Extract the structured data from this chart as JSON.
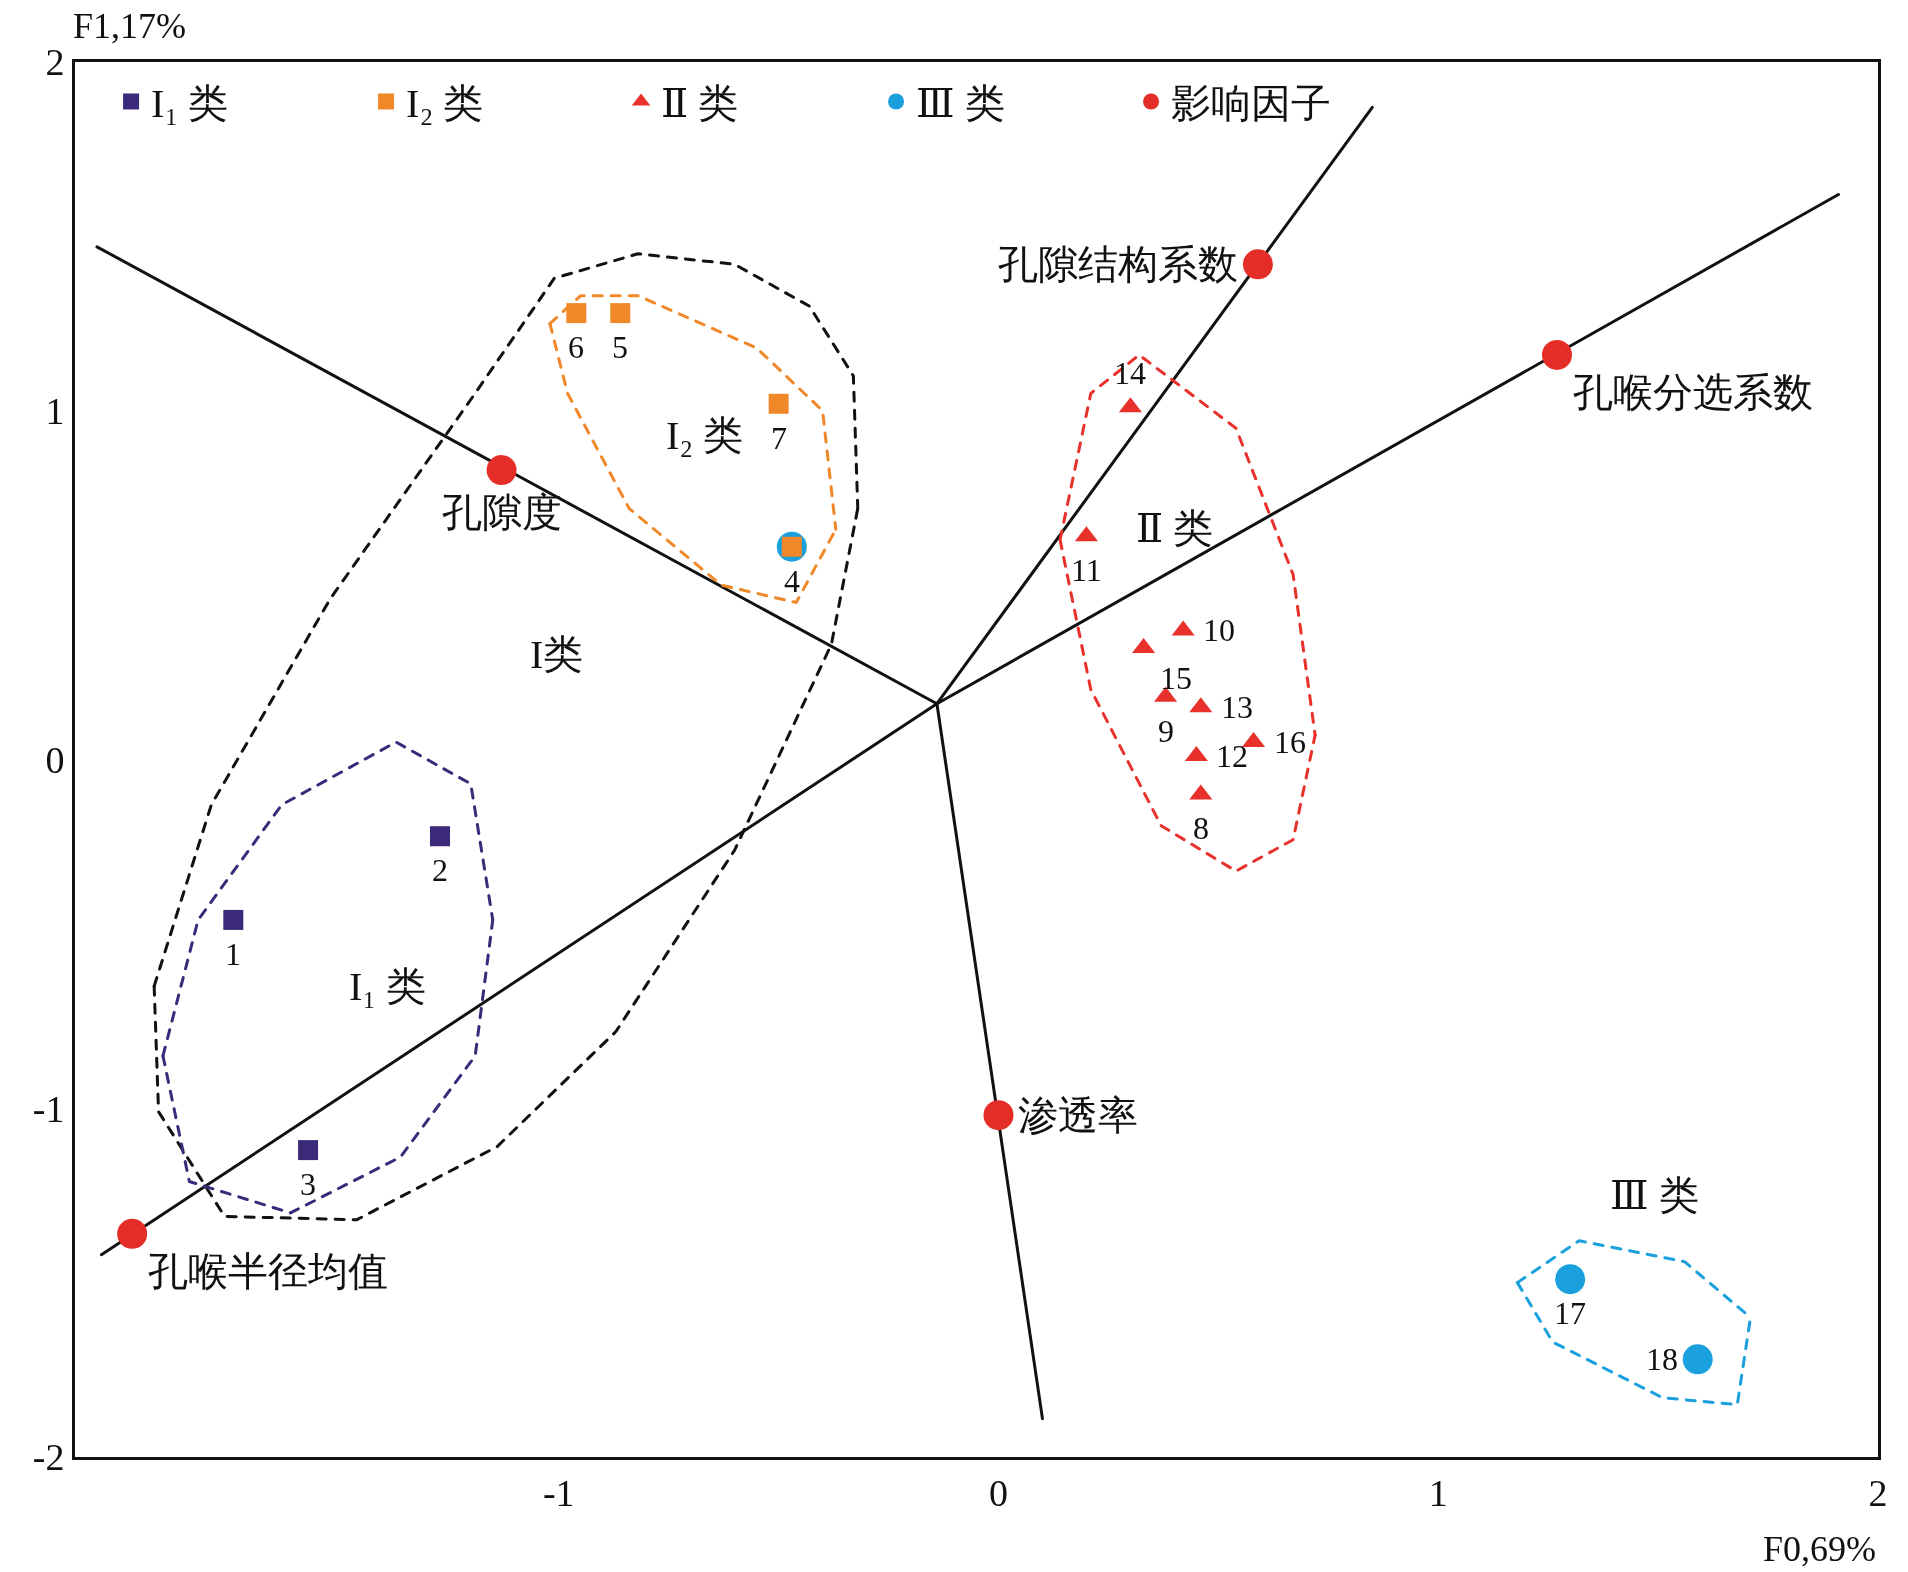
{
  "chart_data": {
    "type": "scatter",
    "xlabel": "F0,69%",
    "ylabel": "F1,17%",
    "xlim": [
      -2.1,
      2
    ],
    "ylim": [
      -2,
      2
    ],
    "xticks": [
      -1,
      0,
      1,
      2
    ],
    "yticks": [
      -2,
      -1,
      0,
      1,
      2
    ],
    "grid": false,
    "legend": "top left",
    "series": [
      {
        "type": "line",
        "line_style": "solid",
        "color": "#111111",
        "x": [
          -0.14,
          -2.05,
          null,
          -0.14,
          0.85,
          null,
          -0.14,
          1.91,
          null,
          -0.14,
          -2.04,
          null,
          -0.14,
          0.1
        ],
        "values": [
          0.16,
          1.47,
          null,
          0.16,
          1.87,
          null,
          0.16,
          1.62,
          null,
          0.16,
          -1.42,
          null,
          0.16,
          -1.89
        ]
      },
      {
        "type": "line",
        "line_style": "dashed",
        "color": "#111111",
        "x": [
          -1.92,
          -1.79,
          -1.52,
          -1.19,
          -1.01,
          -0.82,
          -0.6,
          -0.43,
          -0.33,
          -0.32,
          null,
          -1.92,
          -1.91,
          -1.76,
          -1.46,
          -1.14,
          -0.87,
          -0.6,
          -0.38,
          -0.32
        ],
        "values": [
          -0.65,
          -0.13,
          0.46,
          1.05,
          1.38,
          1.45,
          1.42,
          1.3,
          1.1,
          0.72,
          null,
          -0.65,
          -1.01,
          -1.31,
          -1.32,
          -1.11,
          -0.78,
          -0.26,
          0.33,
          0.72
        ]
      },
      {
        "type": "line",
        "line_style": "dashed",
        "color": "#f0882a",
        "x": [
          -1.02,
          -0.95,
          -0.82,
          -0.55,
          -0.4,
          -0.37,
          null,
          -1.02,
          -0.98,
          -0.84,
          -0.63,
          -0.46,
          -0.37
        ],
        "values": [
          1.25,
          1.33,
          1.33,
          1.18,
          1.0,
          0.66,
          null,
          1.25,
          1.05,
          0.72,
          0.5,
          0.45,
          0.66
        ]
      },
      {
        "type": "line",
        "line_style": "dashed",
        "color": "#3b2a7a",
        "x": [
          -1.9,
          -1.82,
          -1.63,
          -1.37,
          -1.2,
          -1.15,
          null,
          -1.9,
          -1.84,
          -1.61,
          -1.36,
          -1.19,
          -1.15
        ],
        "values": [
          -0.85,
          -0.46,
          -0.13,
          0.05,
          -0.07,
          -0.46,
          null,
          -0.85,
          -1.21,
          -1.3,
          -1.14,
          -0.85,
          -0.46
        ]
      },
      {
        "type": "line",
        "line_style": "dashed",
        "color": "#e8312a",
        "x": [
          0.14,
          0.21,
          0.32,
          0.54,
          0.67,
          0.72,
          null,
          0.14,
          0.21,
          0.37,
          0.54,
          0.67,
          0.72
        ],
        "values": [
          0.63,
          1.05,
          1.16,
          0.95,
          0.53,
          0.07,
          null,
          0.63,
          0.2,
          -0.19,
          -0.32,
          -0.23,
          0.07
        ]
      },
      {
        "type": "line",
        "line_style": "dashed",
        "color": "#1aa0dc",
        "x": [
          1.18,
          1.32,
          1.56,
          1.71,
          null,
          1.18,
          1.26,
          1.51,
          1.68,
          1.71
        ],
        "values": [
          -1.5,
          -1.38,
          -1.44,
          -1.6,
          null,
          -1.5,
          -1.67,
          -1.83,
          -1.85,
          -1.6
        ]
      },
      {
        "name": "I₁ 类",
        "marker": "square",
        "color": "#3b2a7a",
        "x": [
          -1.74,
          -1.27,
          -1.57
        ],
        "values": [
          -0.46,
          -0.22,
          -1.12
        ]
      },
      {
        "name": "I₂ 类",
        "marker": "square",
        "color": "#f0882a",
        "x": [
          -0.47,
          -0.86,
          -0.96,
          -0.5
        ],
        "values": [
          0.61,
          1.28,
          1.28,
          1.02
        ]
      },
      {
        "name": "Ⅱ 类",
        "marker": "triangle",
        "color": "#e8312a",
        "x": [
          0.46,
          0.38,
          0.42,
          0.2,
          0.45,
          0.46,
          0.3,
          0.33,
          0.58
        ],
        "values": [
          -0.1,
          0.18,
          0.37,
          0.64,
          0.01,
          0.15,
          1.01,
          0.32,
          0.05
        ]
      },
      {
        "name": "Ⅲ 类",
        "marker": "circle",
        "color": "#1aa0dc",
        "x": [
          -0.47,
          1.3,
          1.59
        ],
        "values": [
          0.61,
          -1.49,
          -1.72
        ]
      },
      {
        "name": "影响因子",
        "marker": "circle",
        "color": "#e52d27",
        "x": [
          0.59,
          1.27,
          -1.13,
          0,
          -1.97
        ],
        "values": [
          1.42,
          1.16,
          0.83,
          -1.02,
          -1.36
        ]
      }
    ],
    "annotations": [
      {
        "text": "1",
        "x": -1.74,
        "y": -0.46
      },
      {
        "text": "2",
        "x": -1.27,
        "y": -0.22
      },
      {
        "text": "3",
        "x": -1.57,
        "y": -1.12
      },
      {
        "text": "4",
        "x": -0.47,
        "y": 0.61
      },
      {
        "text": "5",
        "x": -0.86,
        "y": 1.28
      },
      {
        "text": "6",
        "x": -0.96,
        "y": 1.28
      },
      {
        "text": "7",
        "x": -0.5,
        "y": 1.02
      },
      {
        "text": "8",
        "x": 0.46,
        "y": -0.1
      },
      {
        "text": "9",
        "x": 0.38,
        "y": 0.18
      },
      {
        "text": "10",
        "x": 0.42,
        "y": 0.37
      },
      {
        "text": "11",
        "x": 0.2,
        "y": 0.64
      },
      {
        "text": "12",
        "x": 0.45,
        "y": 0.01
      },
      {
        "text": "13",
        "x": 0.46,
        "y": 0.15
      },
      {
        "text": "14",
        "x": 0.3,
        "y": 1.01
      },
      {
        "text": "15",
        "x": 0.33,
        "y": 0.32
      },
      {
        "text": "16",
        "x": 0.58,
        "y": 0.05
      },
      {
        "text": "17",
        "x": 1.3,
        "y": -1.49
      },
      {
        "text": "18",
        "x": 1.59,
        "y": -1.72
      },
      {
        "text": "孔隙结构系数",
        "x": 0.59,
        "y": 1.42
      },
      {
        "text": "孔喉分选系数",
        "x": 1.27,
        "y": 1.16
      },
      {
        "text": "孔隙度",
        "x": -1.13,
        "y": 0.83
      },
      {
        "text": "渗透率",
        "x": 0,
        "y": -1.02
      },
      {
        "text": "孔喉半径均值",
        "x": -1.97,
        "y": -1.36
      },
      "I₂ 类",
      "Ⅱ 类",
      "I类",
      "I₁ 类",
      "Ⅲ 类"
    ]
  }
}
